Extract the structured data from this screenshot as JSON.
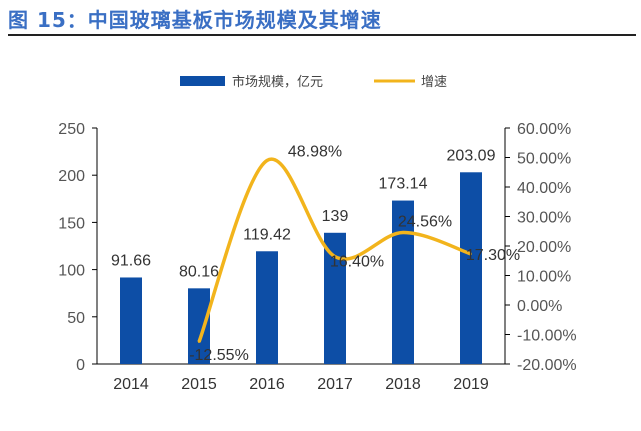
{
  "title": "图 15：中国玻璃基板市场规模及其增速",
  "chart_data": {
    "type": "bar+line",
    "categories": [
      "2014",
      "2015",
      "2016",
      "2017",
      "2018",
      "2019"
    ],
    "series": [
      {
        "name": "市场规模，亿元",
        "type": "bar",
        "axis": "left",
        "color": "#0d4ea6",
        "values": [
          91.66,
          80.16,
          119.42,
          139,
          173.14,
          203.09
        ],
        "labels": [
          "91.66",
          "80.16",
          "119.42",
          "139",
          "173.14",
          "203.09"
        ]
      },
      {
        "name": "增速",
        "type": "line",
        "axis": "right",
        "color": "#f2b41c",
        "smooth": true,
        "values": [
          null,
          -12.55,
          48.98,
          16.4,
          24.56,
          17.3
        ],
        "labels": [
          "",
          "-12.55%",
          "48.98%",
          "16.40%",
          "24.56%",
          "17.30%"
        ]
      }
    ],
    "ylim_left": [
      0,
      250
    ],
    "yticks_left": [
      "0",
      "50",
      "100",
      "150",
      "200",
      "250"
    ],
    "ylim_right": [
      -20,
      60
    ],
    "yticks_right": [
      "-20.00%",
      "-10.00%",
      "0.00%",
      "10.00%",
      "20.00%",
      "30.00%",
      "40.00%",
      "50.00%",
      "60.00%"
    ],
    "legend": "top",
    "grid": false
  }
}
